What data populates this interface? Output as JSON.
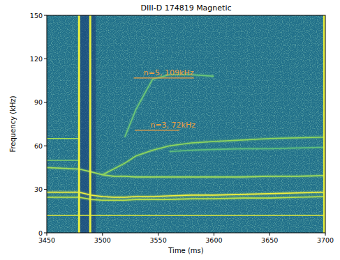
{
  "chart_data": {
    "type": "spectrogram",
    "title": "DIII-D 174819 Magnetic",
    "x_label": "Time (ms)",
    "y_label": "Frequency (kHz)",
    "xlim": [
      3450,
      3700
    ],
    "ylim": [
      0,
      150
    ],
    "xticks": [
      3450,
      3500,
      3550,
      3600,
      3650,
      3700
    ],
    "yticks": [
      0,
      30,
      60,
      90,
      120,
      150
    ],
    "grid": false,
    "x": [
      3450,
      3479,
      3490,
      3500,
      3510,
      3520,
      3530,
      3545,
      3560,
      3580,
      3600,
      3625,
      3650,
      3675,
      3700
    ],
    "series": [
      {
        "color": "#e4ec3a",
        "values": [
          12,
          12,
          12,
          12,
          12,
          12,
          12,
          12,
          12,
          12,
          12,
          12,
          12,
          12,
          12
        ]
      },
      {
        "color": "#f2f23c",
        "values": [
          28,
          28,
          26,
          25,
          24.5,
          24.5,
          25,
          25,
          25.5,
          26,
          26,
          26.5,
          27,
          27.5,
          28
        ]
      },
      {
        "color": "#b8e04a",
        "values": [
          24.5,
          24.5,
          23,
          22.5,
          22.5,
          22.5,
          23,
          23,
          23,
          23.5,
          23.5,
          24,
          24,
          24.5,
          25
        ]
      },
      {
        "color": "#9fdc5a",
        "values": [
          45,
          44,
          42,
          40,
          39,
          39,
          38.5,
          38.5,
          38.5,
          38.5,
          38.5,
          38.5,
          39,
          39,
          39.5
        ]
      },
      {
        "color": "#7fd068",
        "values": [
          50,
          50,
          null,
          null,
          null,
          null,
          null,
          null,
          null,
          null,
          null,
          null,
          null,
          null,
          null
        ]
      },
      {
        "color": "#a6e052",
        "values": [
          65,
          65,
          null,
          null,
          null,
          null,
          null,
          null,
          null,
          null,
          null,
          null,
          null,
          null,
          null
        ]
      },
      {
        "color": "#8fd85c",
        "values": [
          null,
          null,
          null,
          40,
          44,
          48,
          53,
          57,
          60,
          62,
          63,
          64,
          65,
          65.5,
          66
        ]
      },
      {
        "color": "#6cc878",
        "values": [
          null,
          null,
          null,
          null,
          null,
          66,
          85,
          106,
          109,
          109,
          108,
          null,
          null,
          null,
          null
        ]
      },
      {
        "color": "#5fbf7c",
        "values": [
          null,
          null,
          null,
          null,
          null,
          null,
          null,
          null,
          56,
          57,
          57.5,
          58,
          58,
          58.5,
          59
        ]
      }
    ],
    "bursts": [
      3479,
      3489,
      3699
    ],
    "bursts_color": "#e8f040",
    "annotations": [
      {
        "text": "n=5, 109kHz",
        "x": 3537,
        "y": 106.8,
        "x_range": [
          3528,
          3582
        ],
        "color": "#f0a040"
      },
      {
        "text": "n=3, 72kHz",
        "x": 3543,
        "y": 70.7,
        "x_range": [
          3529,
          3569
        ],
        "color": "#f0a040"
      }
    ]
  }
}
